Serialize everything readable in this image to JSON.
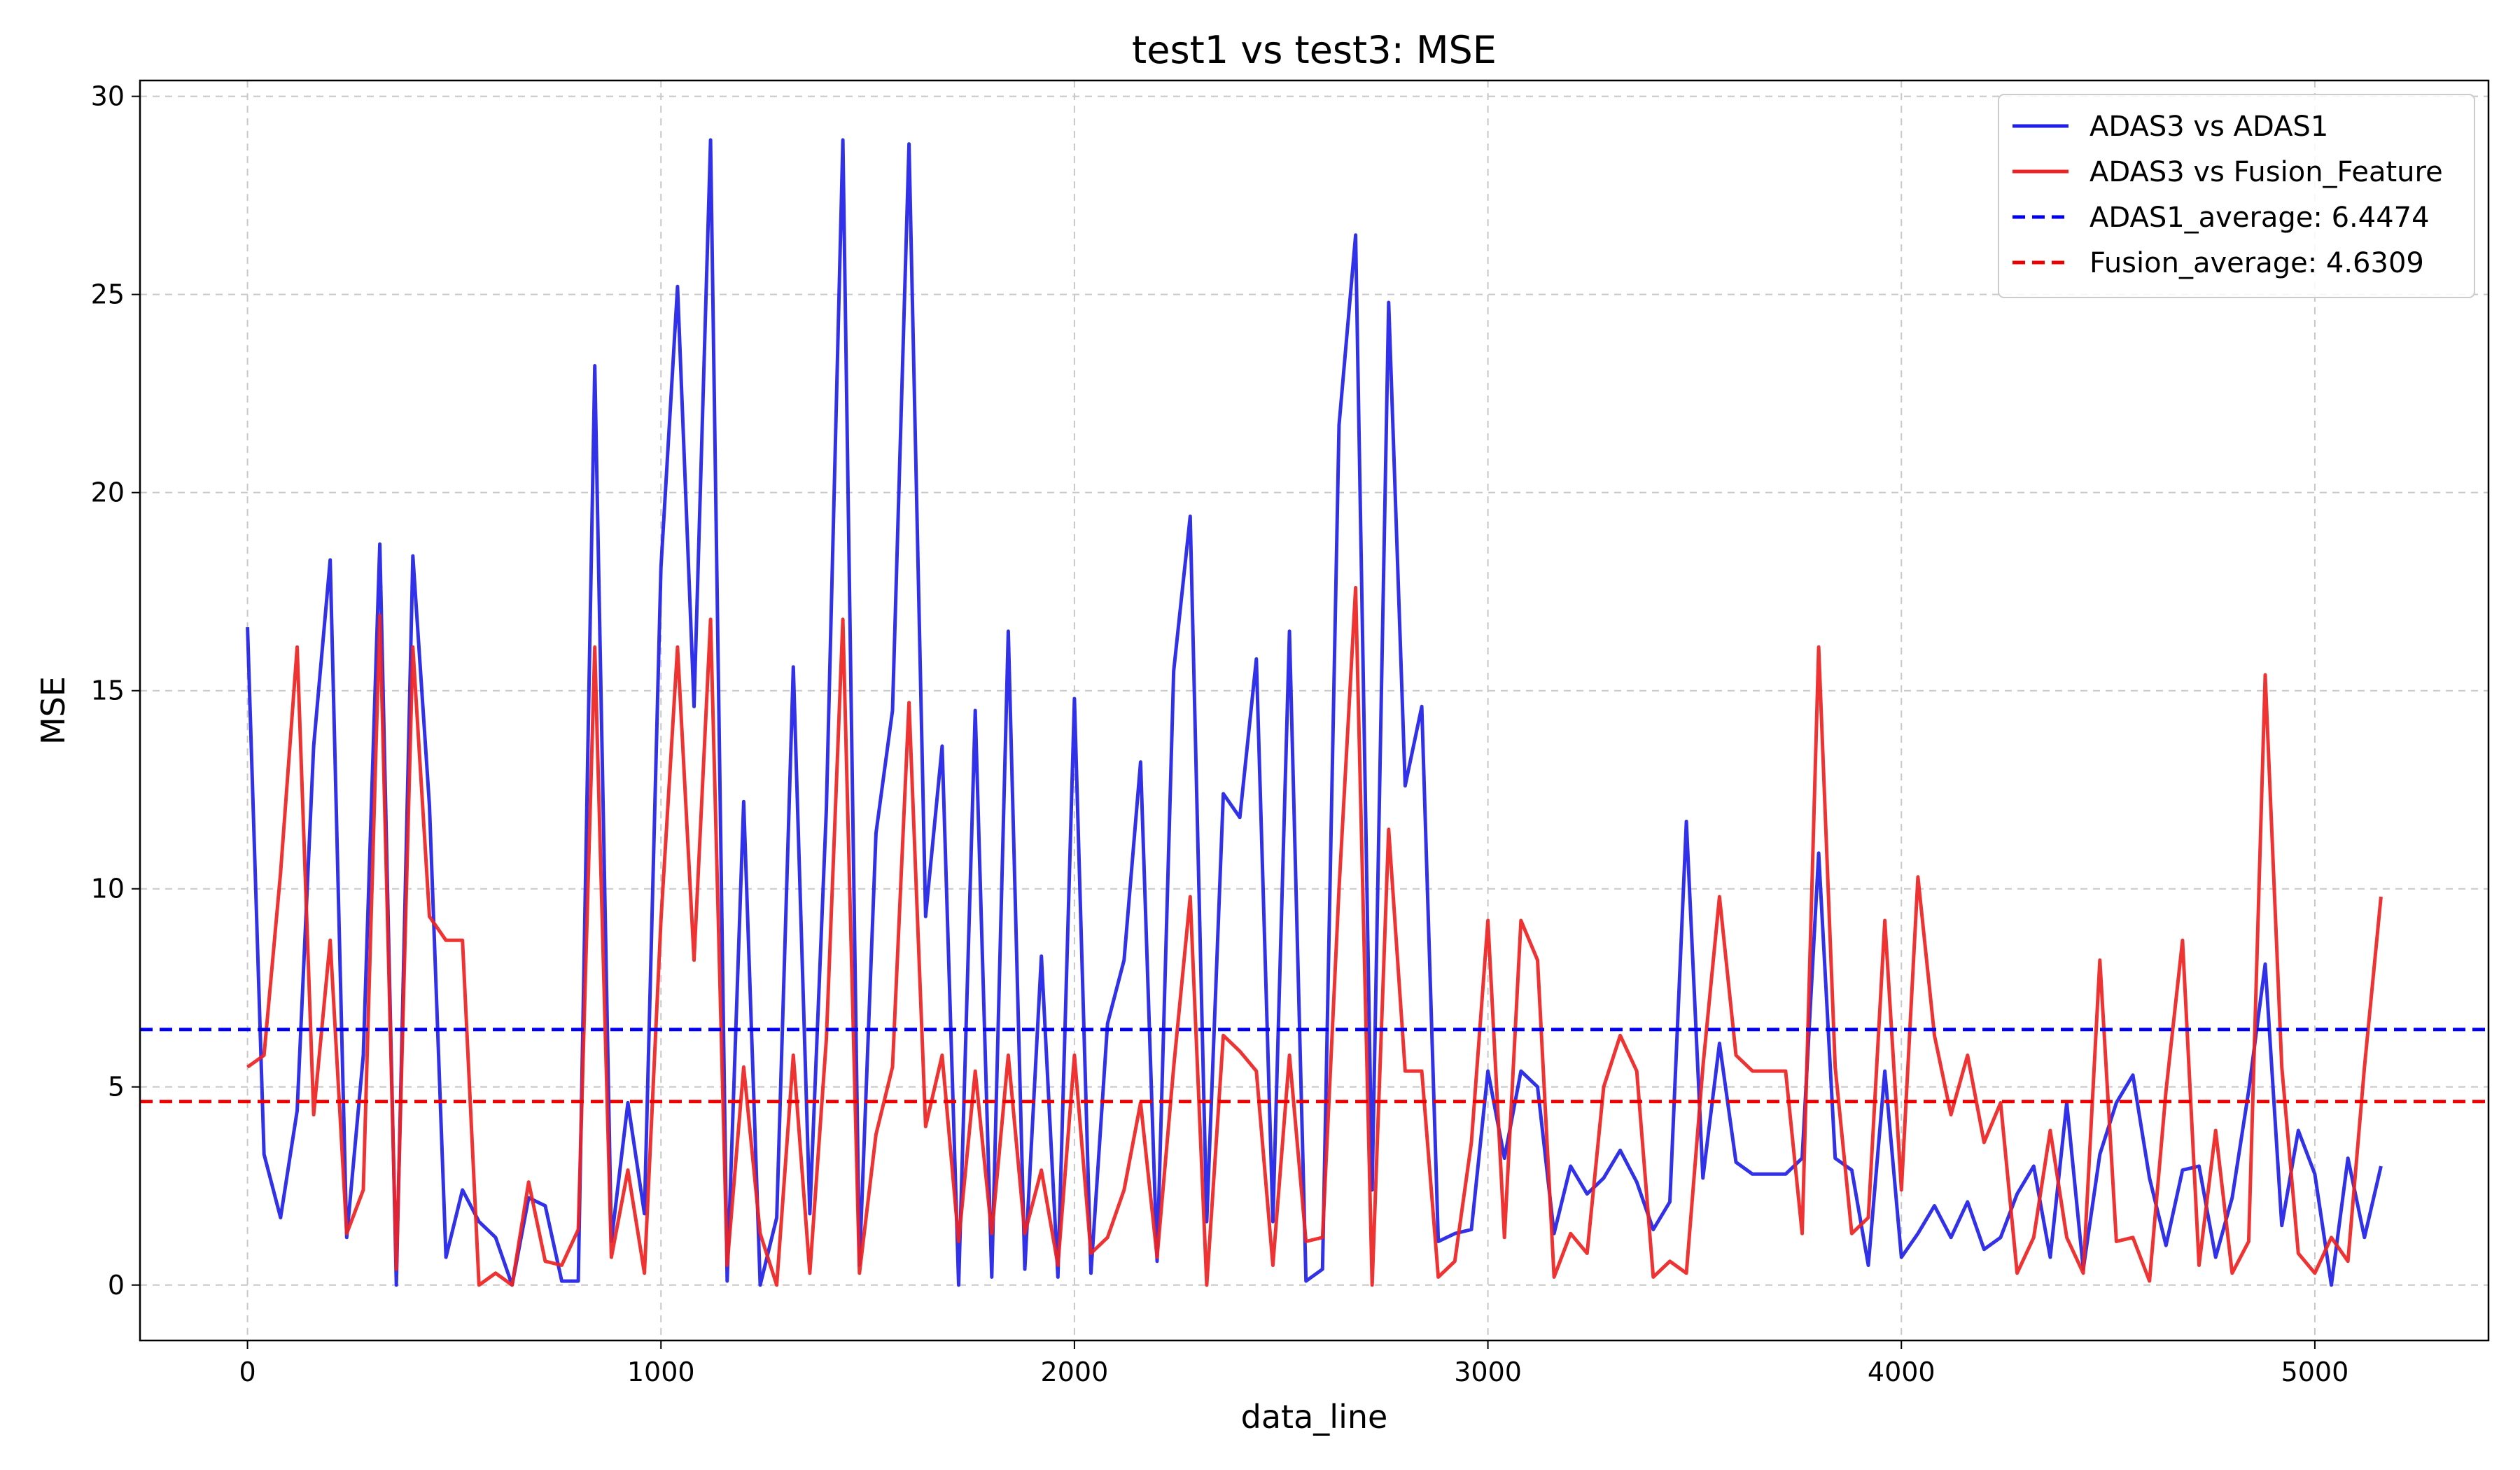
{
  "chart_data": {
    "type": "line",
    "title": "test1 vs test3: MSE",
    "xlabel": "data_line",
    "ylabel": "MSE",
    "xlim": [
      -260,
      5420
    ],
    "ylim": [
      -1.4,
      30.4
    ],
    "xticks": [
      0,
      1000,
      2000,
      3000,
      4000,
      5000
    ],
    "yticks": [
      0,
      5,
      10,
      15,
      20,
      25,
      30
    ],
    "grid": true,
    "legend_position": "upper right",
    "x": [
      0,
      40,
      80,
      120,
      160,
      200,
      240,
      280,
      320,
      360,
      400,
      440,
      480,
      520,
      560,
      600,
      640,
      680,
      720,
      760,
      800,
      840,
      880,
      920,
      960,
      1000,
      1040,
      1080,
      1120,
      1160,
      1200,
      1240,
      1280,
      1320,
      1360,
      1400,
      1440,
      1480,
      1520,
      1560,
      1600,
      1640,
      1680,
      1720,
      1760,
      1800,
      1840,
      1880,
      1920,
      1960,
      2000,
      2040,
      2080,
      2120,
      2160,
      2200,
      2240,
      2280,
      2320,
      2360,
      2400,
      2440,
      2480,
      2520,
      2560,
      2600,
      2640,
      2680,
      2720,
      2760,
      2800,
      2840,
      2880,
      2920,
      2960,
      3000,
      3040,
      3080,
      3120,
      3160,
      3200,
      3240,
      3280,
      3320,
      3360,
      3400,
      3440,
      3480,
      3520,
      3560,
      3600,
      3640,
      3680,
      3720,
      3760,
      3800,
      3840,
      3880,
      3920,
      3960,
      4000,
      4040,
      4080,
      4120,
      4160,
      4200,
      4240,
      4280,
      4320,
      4360,
      4400,
      4440,
      4480,
      4520,
      4560,
      4600,
      4640,
      4680,
      4720,
      4760,
      4800,
      4840,
      4880,
      4920,
      4960,
      5000,
      5040,
      5080,
      5120,
      5160
    ],
    "series": [
      {
        "name": "ADAS3 vs ADAS1",
        "color": "#1f1fe8",
        "style": "solid",
        "values": [
          16.6,
          3.3,
          1.7,
          4.4,
          13.6,
          18.3,
          1.2,
          5.8,
          18.7,
          0.0,
          18.4,
          12.1,
          0.7,
          2.4,
          1.6,
          1.2,
          0.0,
          2.2,
          2.0,
          0.1,
          0.1,
          23.2,
          1.1,
          4.6,
          1.8,
          18.1,
          25.2,
          14.6,
          28.9,
          0.1,
          12.2,
          0.0,
          1.7,
          15.6,
          1.8,
          12.0,
          28.9,
          0.5,
          11.4,
          14.5,
          28.8,
          9.3,
          13.6,
          0.0,
          14.5,
          0.2,
          16.5,
          0.4,
          8.3,
          0.2,
          14.8,
          0.3,
          6.6,
          8.2,
          13.2,
          0.6,
          15.5,
          19.4,
          1.6,
          12.4,
          11.8,
          15.8,
          1.6,
          16.5,
          0.1,
          0.4,
          21.7,
          26.5,
          2.4,
          24.8,
          12.6,
          14.6,
          1.1,
          1.3,
          1.4,
          5.4,
          3.2,
          5.4,
          5.0,
          1.3,
          3.0,
          2.3,
          2.7,
          3.4,
          2.6,
          1.4,
          2.1,
          11.7,
          2.7,
          6.1,
          3.1,
          2.8,
          2.8,
          2.8,
          3.2,
          10.9,
          3.2,
          2.9,
          0.5,
          5.4,
          0.7,
          1.3,
          2.0,
          1.2,
          2.1,
          0.9,
          1.2,
          2.3,
          3.0,
          0.7,
          4.6,
          0.4,
          3.3,
          4.6,
          5.3,
          2.7,
          1.0,
          2.9,
          3.0,
          0.7,
          2.2,
          4.9,
          8.1,
          1.5,
          3.9,
          2.8,
          0.0,
          3.2,
          1.2,
          3.0
        ]
      },
      {
        "name": "ADAS3 vs Fusion_Feature",
        "color": "#ee2222",
        "style": "solid",
        "values": [
          5.5,
          5.8,
          10.4,
          16.1,
          4.3,
          8.7,
          1.3,
          2.4,
          16.9,
          0.4,
          16.1,
          9.3,
          8.7,
          8.7,
          0.0,
          0.3,
          0.0,
          2.6,
          0.6,
          0.5,
          1.4,
          16.1,
          0.7,
          2.9,
          0.3,
          9.2,
          16.1,
          8.2,
          16.8,
          0.5,
          5.5,
          1.3,
          0.0,
          5.8,
          0.3,
          6.2,
          16.8,
          0.3,
          3.8,
          5.5,
          14.7,
          4.0,
          5.8,
          1.1,
          5.4,
          1.3,
          5.8,
          1.3,
          2.9,
          0.5,
          5.8,
          0.8,
          1.2,
          2.4,
          4.6,
          0.7,
          5.5,
          9.8,
          0.0,
          6.3,
          5.9,
          5.4,
          0.5,
          5.8,
          1.1,
          1.2,
          10.0,
          17.6,
          0.0,
          11.5,
          5.4,
          5.4,
          0.2,
          0.6,
          3.6,
          9.2,
          1.2,
          9.2,
          8.2,
          0.2,
          1.3,
          0.8,
          5.0,
          6.3,
          5.4,
          0.2,
          0.6,
          0.3,
          5.5,
          9.8,
          5.8,
          5.4,
          5.4,
          5.4,
          1.3,
          16.1,
          5.5,
          1.3,
          1.7,
          9.2,
          2.4,
          10.3,
          6.3,
          4.3,
          5.8,
          3.6,
          4.6,
          0.3,
          1.2,
          3.9,
          1.2,
          0.3,
          8.2,
          1.1,
          1.2,
          0.1,
          4.9,
          8.7,
          0.5,
          3.9,
          0.3,
          1.1,
          15.4,
          5.5,
          0.8,
          0.3,
          1.2,
          0.6,
          5.5,
          9.8
        ]
      },
      {
        "name": "ADAS1_average: 6.4474",
        "color": "#0000ee",
        "style": "dashed",
        "constant": 6.4474
      },
      {
        "name": "Fusion_average: 4.6309",
        "color": "#ee0000",
        "style": "dashed",
        "constant": 4.6309
      }
    ]
  }
}
